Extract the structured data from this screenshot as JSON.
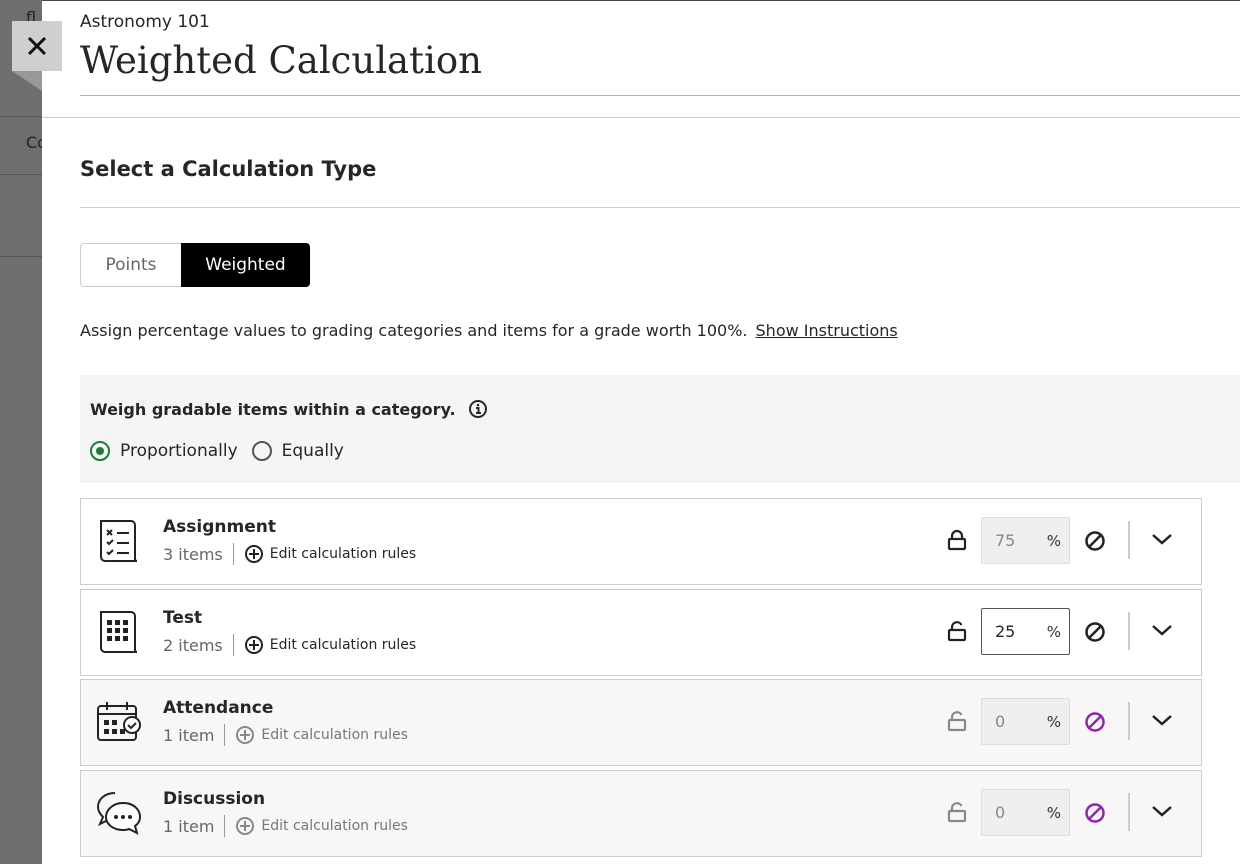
{
  "background": {
    "partial_texts": [
      "fl",
      "Co"
    ]
  },
  "header": {
    "course": "Astronomy 101",
    "title": "Weighted Calculation",
    "close_icon": "close-icon"
  },
  "calculation": {
    "section_title": "Select a Calculation Type",
    "types": [
      "Points",
      "Weighted"
    ],
    "selected": "Weighted",
    "description": "Assign percentage values to grading categories and items for a grade worth 100%.",
    "instructions_link": "Show Instructions"
  },
  "weigh": {
    "question": "Weigh gradable items within a category.",
    "options": [
      "Proportionally",
      "Equally"
    ],
    "selected": "Proportionally"
  },
  "colors": {
    "accent_green": "#1e7d34",
    "disabled_purple": "#8e27a8"
  },
  "categories": [
    {
      "name": "Assignment",
      "count": "3 items",
      "rule": "Edit calculation rules",
      "value": "75",
      "unit": "%",
      "locked": true,
      "disabled": false,
      "icon": "assignment-checklist-icon"
    },
    {
      "name": "Test",
      "count": "2 items",
      "rule": "Edit calculation rules",
      "value": "25",
      "unit": "%",
      "locked": false,
      "disabled": false,
      "icon": "test-grid-icon"
    },
    {
      "name": "Attendance",
      "count": "1 item",
      "rule": "Edit calculation rules",
      "value": "0",
      "unit": "%",
      "locked": false,
      "disabled": true,
      "icon": "attendance-calendar-icon"
    },
    {
      "name": "Discussion",
      "count": "1 item",
      "rule": "Edit calculation rules",
      "value": "0",
      "unit": "%",
      "locked": false,
      "disabled": true,
      "icon": "discussion-bubbles-icon"
    }
  ]
}
